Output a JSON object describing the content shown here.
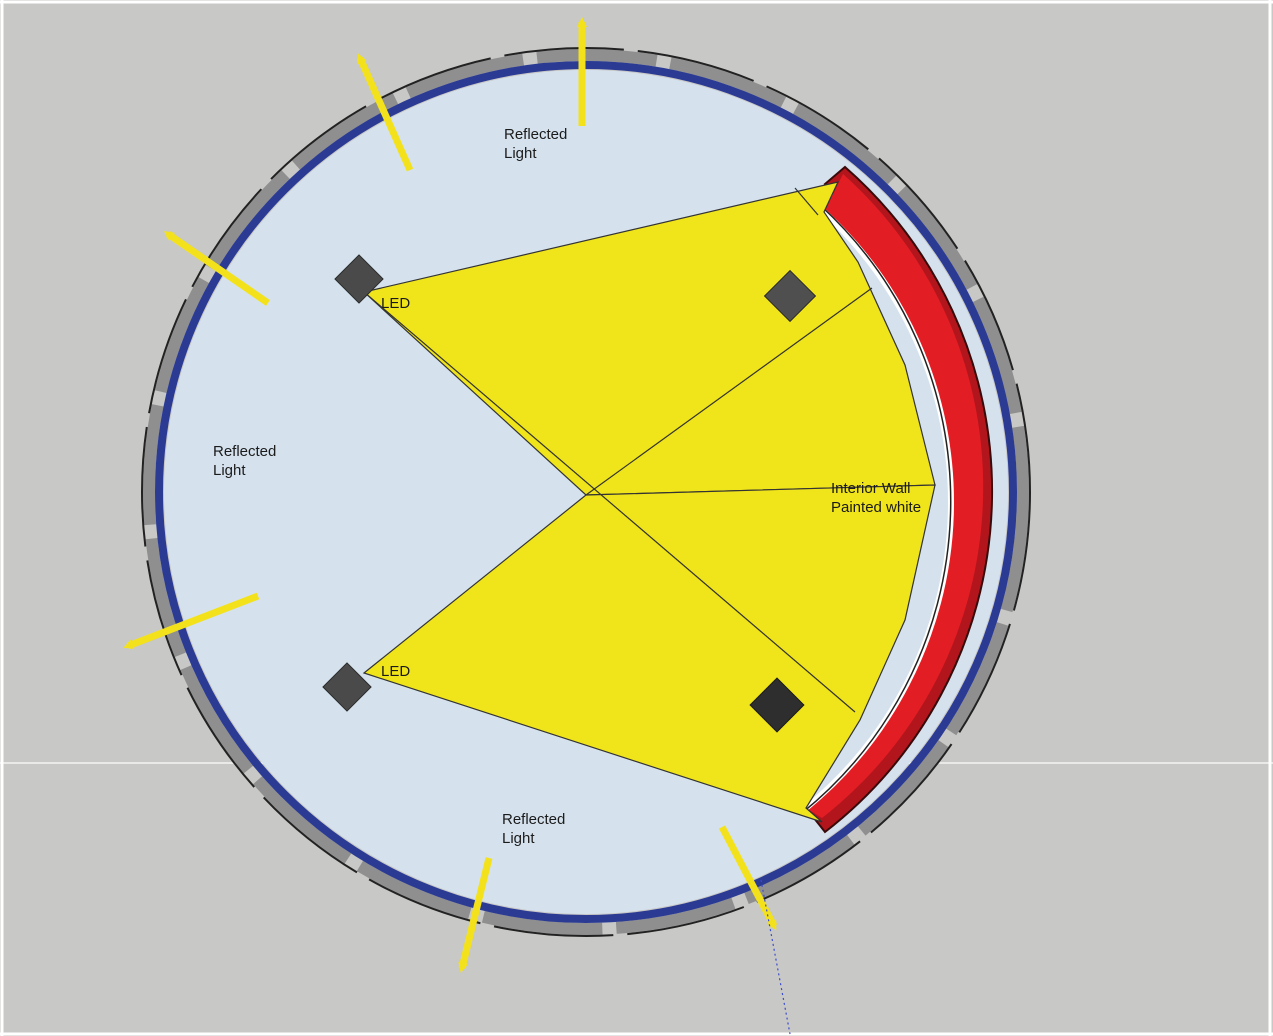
{
  "diagram": {
    "labels": {
      "reflected_top": [
        "Reflected",
        "Light"
      ],
      "reflected_left": [
        "Reflected",
        "Light"
      ],
      "reflected_bottom": [
        "Reflected",
        "Light"
      ],
      "led_top": "LED",
      "led_bottom": "LED",
      "interior_wall": [
        "Interior Wall",
        "Painted white"
      ]
    },
    "colors": {
      "background": "#c8c8c6",
      "interior": "#d5e2ee",
      "light_cone": "#f0e41a",
      "outer_panels": "#8f8f8f",
      "inner_ring": "#2b3b94",
      "reflector_wall": "#e31d24",
      "reflector_dark": "#b3151d",
      "wall_paint": "#ffffff",
      "led_block": "#4a4a4a",
      "arrow": "#f3e21b"
    }
  }
}
